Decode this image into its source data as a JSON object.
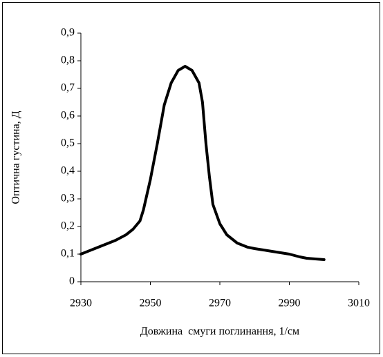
{
  "chart_data": {
    "type": "line",
    "xlabel": "Довжина  смуги поглинання, 1/см",
    "ylabel": "Оптична густина, Д",
    "x": [
      2930,
      2935,
      2940,
      2943,
      2945,
      2947,
      2948,
      2950,
      2952,
      2954,
      2956,
      2958,
      2960,
      2962,
      2964,
      2965,
      2966,
      2967,
      2968,
      2970,
      2972,
      2975,
      2978,
      2980,
      2985,
      2990,
      2993,
      2995,
      3000
    ],
    "values": [
      0.1,
      0.125,
      0.15,
      0.17,
      0.19,
      0.22,
      0.26,
      0.37,
      0.5,
      0.64,
      0.72,
      0.765,
      0.78,
      0.765,
      0.72,
      0.65,
      0.5,
      0.38,
      0.28,
      0.21,
      0.17,
      0.14,
      0.125,
      0.12,
      0.11,
      0.1,
      0.09,
      0.085,
      0.08
    ],
    "color": "#000000",
    "xlim": [
      2930,
      3010
    ],
    "xticks": [
      2930,
      2950,
      2970,
      2990,
      3010
    ],
    "ylim": [
      0,
      0.9
    ],
    "yticks": [
      0,
      {
        "value": 0.1,
        "label": "0,1"
      },
      {
        "value": 0.2,
        "label": "0,2"
      },
      {
        "value": 0.3,
        "label": "0,3"
      },
      {
        "value": 0.4,
        "label": "0,4"
      },
      {
        "value": 0.5,
        "label": "0,5"
      },
      {
        "value": 0.6,
        "label": "0,6"
      },
      {
        "value": 0.7,
        "label": "0,7"
      },
      {
        "value": 0.8,
        "label": "0,8"
      },
      {
        "value": 0.9,
        "label": "0,9"
      }
    ],
    "grid": false
  }
}
